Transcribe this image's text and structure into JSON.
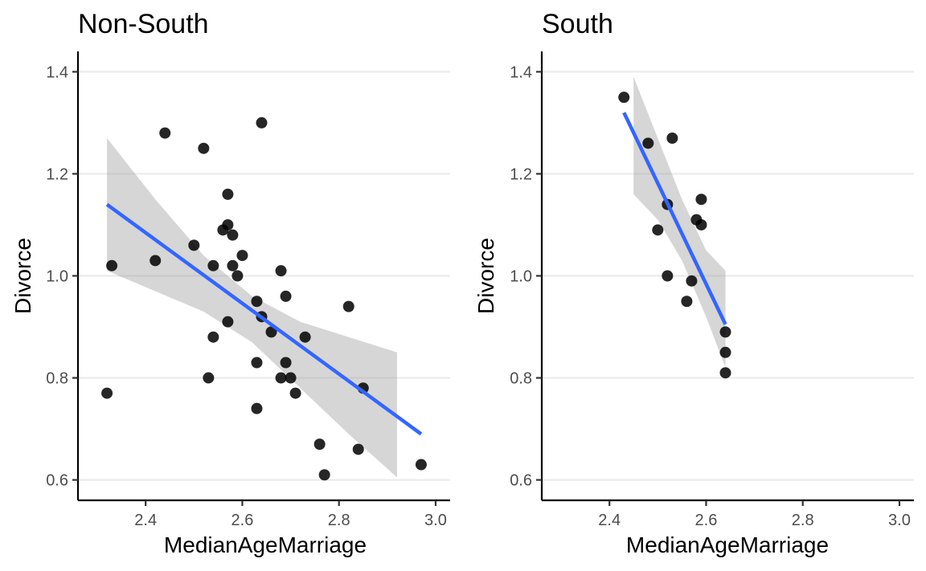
{
  "chart_data": [
    {
      "type": "scatter",
      "title": "Non-South",
      "xlabel": "MedianAgeMarriage",
      "ylabel": "Divorce",
      "xlim": [
        2.26,
        3.03
      ],
      "ylim": [
        0.56,
        1.44
      ],
      "xticks": [
        2.4,
        2.6,
        2.8,
        3.0
      ],
      "yticks": [
        0.6,
        0.8,
        1.0,
        1.2,
        1.4
      ],
      "xtick_labels": [
        "2.4",
        "2.6",
        "2.8",
        "3.0"
      ],
      "ytick_labels": [
        "0.6",
        "0.8",
        "1.0",
        "1.2",
        "1.4"
      ],
      "grid": "horizontal",
      "colors": {
        "points": "#000000",
        "fit": "#3366FF",
        "ribbon": "#999999"
      },
      "points": [
        {
          "x": 2.32,
          "y": 0.77
        },
        {
          "x": 2.33,
          "y": 1.02
        },
        {
          "x": 2.42,
          "y": 1.03
        },
        {
          "x": 2.44,
          "y": 1.28
        },
        {
          "x": 2.5,
          "y": 1.06
        },
        {
          "x": 2.52,
          "y": 1.25
        },
        {
          "x": 2.53,
          "y": 0.8
        },
        {
          "x": 2.54,
          "y": 1.02
        },
        {
          "x": 2.54,
          "y": 0.88
        },
        {
          "x": 2.56,
          "y": 1.09
        },
        {
          "x": 2.57,
          "y": 1.16
        },
        {
          "x": 2.57,
          "y": 1.1
        },
        {
          "x": 2.57,
          "y": 0.91
        },
        {
          "x": 2.58,
          "y": 1.08
        },
        {
          "x": 2.58,
          "y": 1.02
        },
        {
          "x": 2.59,
          "y": 1.0
        },
        {
          "x": 2.6,
          "y": 1.04
        },
        {
          "x": 2.63,
          "y": 0.95
        },
        {
          "x": 2.63,
          "y": 0.83
        },
        {
          "x": 2.63,
          "y": 0.74
        },
        {
          "x": 2.64,
          "y": 1.3
        },
        {
          "x": 2.64,
          "y": 0.92
        },
        {
          "x": 2.66,
          "y": 0.89
        },
        {
          "x": 2.68,
          "y": 1.01
        },
        {
          "x": 2.68,
          "y": 0.8
        },
        {
          "x": 2.69,
          "y": 0.96
        },
        {
          "x": 2.69,
          "y": 0.83
        },
        {
          "x": 2.7,
          "y": 0.8
        },
        {
          "x": 2.71,
          "y": 0.77
        },
        {
          "x": 2.73,
          "y": 0.88
        },
        {
          "x": 2.76,
          "y": 0.67
        },
        {
          "x": 2.77,
          "y": 0.61
        },
        {
          "x": 2.82,
          "y": 0.94
        },
        {
          "x": 2.84,
          "y": 0.66
        },
        {
          "x": 2.85,
          "y": 0.78
        },
        {
          "x": 2.97,
          "y": 0.63
        }
      ],
      "fit": {
        "x": [
          2.32,
          2.97
        ],
        "y": [
          1.14,
          0.69
        ]
      },
      "ribbon": {
        "x": [
          2.32,
          2.42,
          2.52,
          2.62,
          2.72,
          2.82,
          2.92
        ],
        "upper": [
          1.27,
          1.15,
          1.04,
          0.96,
          0.91,
          0.88,
          0.85
        ],
        "lower": [
          1.01,
          0.97,
          0.93,
          0.87,
          0.78,
          0.69,
          0.605
        ]
      }
    },
    {
      "type": "scatter",
      "title": "South",
      "xlabel": "MedianAgeMarriage",
      "ylabel": "Divorce",
      "xlim": [
        2.26,
        3.03
      ],
      "ylim": [
        0.56,
        1.44
      ],
      "xticks": [
        2.4,
        2.6,
        2.8,
        3.0
      ],
      "yticks": [
        0.6,
        0.8,
        1.0,
        1.2,
        1.4
      ],
      "xtick_labels": [
        "2.4",
        "2.6",
        "2.8",
        "3.0"
      ],
      "ytick_labels": [
        "0.6",
        "0.8",
        "1.0",
        "1.2",
        "1.4"
      ],
      "grid": "horizontal",
      "colors": {
        "points": "#000000",
        "fit": "#3366FF",
        "ribbon": "#999999"
      },
      "points": [
        {
          "x": 2.43,
          "y": 1.35
        },
        {
          "x": 2.48,
          "y": 1.26
        },
        {
          "x": 2.53,
          "y": 1.27
        },
        {
          "x": 2.52,
          "y": 1.14
        },
        {
          "x": 2.5,
          "y": 1.09
        },
        {
          "x": 2.52,
          "y": 1.0
        },
        {
          "x": 2.56,
          "y": 0.95
        },
        {
          "x": 2.57,
          "y": 0.99
        },
        {
          "x": 2.58,
          "y": 1.11
        },
        {
          "x": 2.59,
          "y": 1.15
        },
        {
          "x": 2.59,
          "y": 1.1
        },
        {
          "x": 2.64,
          "y": 0.89
        },
        {
          "x": 2.64,
          "y": 0.85
        },
        {
          "x": 2.64,
          "y": 0.81
        }
      ],
      "fit": {
        "x": [
          2.43,
          2.64
        ],
        "y": [
          1.32,
          0.905
        ]
      },
      "ribbon": {
        "x": [
          2.45,
          2.5,
          2.55,
          2.6,
          2.64
        ],
        "upper": [
          1.39,
          1.27,
          1.15,
          1.05,
          1.01
        ],
        "lower": [
          1.16,
          1.11,
          1.03,
          0.92,
          0.82
        ]
      }
    }
  ]
}
